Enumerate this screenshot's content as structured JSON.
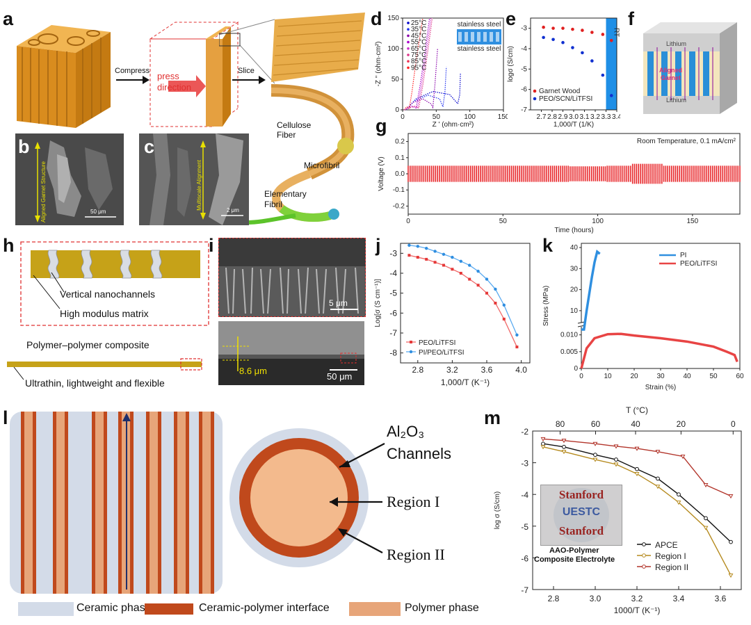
{
  "panels": {
    "a": {
      "letter": "a",
      "compress": "Compress",
      "press": "press",
      "direction": "direction",
      "slice": "Slice",
      "cellulose": "Cellulose",
      "fiber": "Fiber",
      "microfibril": "Microfibril",
      "elementary": "Elementary",
      "fibril": "Fibril"
    },
    "b": {
      "letter": "b",
      "vertical_label": "Aligned Garnet Structure",
      "scale": "50 μm"
    },
    "c": {
      "letter": "c",
      "vertical_label": "Multiscale Alignment",
      "scale": "2 μm"
    },
    "d": {
      "letter": "d",
      "ylabel": "-Z '' (ohm·cm²)",
      "xlabel": "Z ' (ohm·cm²)",
      "legend": [
        "25°C",
        "35°C",
        "45°C",
        "55°C",
        "65°C",
        "75°C",
        "85°C",
        "95°C"
      ],
      "legend_colors": [
        "#0000cc",
        "#2233ee",
        "#8800aa",
        "#aa00cc",
        "#cc33cc",
        "#dd3388",
        "#ee3355",
        "#ff2222"
      ],
      "inset_top": "stainless steel",
      "inset_bottom": "stainless steel",
      "xticks": [
        "0",
        "50",
        "100",
        "150"
      ],
      "yticks": [
        "0",
        "50",
        "100",
        "150"
      ]
    },
    "e": {
      "letter": "e",
      "ylabel": "logσ (S/cm)",
      "xlabel": "1,000/T (1/K)",
      "rt": "RT",
      "legend": [
        "Garnet Wood",
        "PEO/SCN/LiTFSI"
      ],
      "xticks": [
        "2.7",
        "2.8",
        "2.9",
        "3.0",
        "3.1",
        "3.2",
        "3.3",
        "3.4"
      ],
      "yticks": [
        "-3",
        "-4",
        "-5",
        "-6",
        "-7"
      ]
    },
    "f": {
      "letter": "f",
      "top": "Lithium",
      "middle1": "Aligned",
      "middle2": "Garnet",
      "bottom": "Lithium"
    },
    "g": {
      "letter": "g",
      "annotation": "Room Temperature, 0.1 mA/cm²",
      "ylabel": "Voltage (V)",
      "xlabel": "Time (hours)",
      "xticks": [
        "0",
        "50",
        "100",
        "150"
      ],
      "yticks": [
        "0.2",
        "0.1",
        "0.0",
        "-0.1",
        "-0.2"
      ]
    },
    "h": {
      "letter": "h",
      "nanochannels": "Vertical nanochannels",
      "matrix": "High modulus matrix",
      "composite": "Polymer–polymer composite",
      "ultrathin": "Ultrathin, lightweight and flexible"
    },
    "i": {
      "letter": "i",
      "scale1": "5 μm",
      "thickness": "8.6 μm",
      "scale2": "50 μm"
    },
    "j": {
      "letter": "j",
      "ylabel": "Log[σ (S cm⁻¹)]",
      "xlabel": "1,000/T (K⁻¹)",
      "legend": [
        "PEO/LiTFSI",
        "PI/PEO/LiTFSI"
      ],
      "xticks": [
        "2.8",
        "3.2",
        "3.6",
        "4.0"
      ],
      "yticks": [
        "-3",
        "-4",
        "-5",
        "-6",
        "-7",
        "-8"
      ]
    },
    "k": {
      "letter": "k",
      "ylabel": "Stress (MPa)",
      "xlabel": "Strain (%)",
      "legend": [
        "PI",
        "PEO/LiTFSI"
      ],
      "xticks": [
        "0",
        "10",
        "20",
        "30",
        "40",
        "50",
        "60"
      ],
      "yticks_top": [
        "40",
        "30",
        "20",
        "10"
      ],
      "yticks_bottom": [
        "0.010",
        "0.005",
        "0"
      ]
    },
    "l": {
      "letter": "l",
      "al2o3": "Al₂O₃",
      "channels": "Channels",
      "region1": "Region I",
      "region2": "Region II",
      "legend": [
        "Ceramic phase",
        "Ceramic-polymer interface",
        "Polymer phase"
      ]
    },
    "m": {
      "letter": "m",
      "top_axis": "T (°C)",
      "ylabel": "log σ (S/cm)",
      "xlabel": "1000/T (K⁻¹)",
      "top_ticks": [
        "80",
        "60",
        "40",
        "20",
        "0"
      ],
      "xticks": [
        "2.8",
        "3.0",
        "3.2",
        "3.4",
        "3.6"
      ],
      "yticks": [
        "-2",
        "-3",
        "-4",
        "-5",
        "-6",
        "-7"
      ],
      "legend": [
        "APCE",
        "Region I",
        "Region II"
      ],
      "inset_lines": [
        "Stanford",
        "UESTC",
        "Stanford"
      ],
      "caption1": "AAO-Polymer",
      "caption2": "Composite Electrolyte"
    }
  },
  "chart_data": [
    {
      "type": "line",
      "title": "",
      "xlabel": "Z ' (ohm·cm²)",
      "ylabel": "-Z '' (ohm·cm²)",
      "xlim": [
        0,
        150
      ],
      "ylim": [
        0,
        150
      ],
      "series": [
        {
          "name": "25°C",
          "x": [
            5,
            20,
            45,
            70,
            82,
            85,
            86
          ],
          "y": [
            0,
            18,
            30,
            25,
            10,
            25,
            60
          ]
        },
        {
          "name": "35°C",
          "x": [
            5,
            18,
            38,
            55,
            60,
            63,
            65
          ],
          "y": [
            0,
            15,
            24,
            18,
            5,
            30,
            70
          ]
        },
        {
          "name": "45°C",
          "x": [
            5,
            15,
            30,
            42,
            45,
            48,
            52
          ],
          "y": [
            0,
            12,
            18,
            10,
            4,
            40,
            100
          ]
        },
        {
          "name": "95°C",
          "x": [
            2,
            6,
            10,
            14,
            20,
            30
          ],
          "y": [
            0,
            5,
            3,
            30,
            80,
            150
          ]
        }
      ]
    },
    {
      "type": "scatter",
      "title": "",
      "xlabel": "1,000/T (1/K)",
      "ylabel": "logσ (S/cm)",
      "xlim": [
        2.6,
        3.4
      ],
      "ylim": [
        -7,
        -2.5
      ],
      "series": [
        {
          "name": "Garnet Wood",
          "x": [
            2.72,
            2.81,
            2.9,
            2.99,
            3.08,
            3.17,
            3.27
          ],
          "y": [
            -2.95,
            -3.0,
            -3.0,
            -3.05,
            -3.1,
            -3.2,
            -3.3
          ]
        },
        {
          "name": "PEO/SCN/LiTFSI",
          "x": [
            2.72,
            2.81,
            2.9,
            2.99,
            3.08,
            3.17,
            3.27
          ],
          "y": [
            -3.45,
            -3.55,
            -3.7,
            -3.95,
            -4.2,
            -4.6,
            -5.3
          ]
        }
      ]
    },
    {
      "type": "line",
      "title": "",
      "xlabel": "Time (hours)",
      "ylabel": "Voltage (V)",
      "xlim": [
        0,
        175
      ],
      "ylim": [
        -0.25,
        0.25
      ],
      "series": [
        {
          "name": "",
          "x": [
            0,
            175
          ],
          "y_upper": [
            0.05,
            0.05
          ],
          "y_lower": [
            -0.05,
            -0.05
          ]
        }
      ]
    },
    {
      "type": "line",
      "title": "",
      "xlabel": "1,000/T (K⁻¹)",
      "ylabel": "Log[σ (S cm⁻¹)]",
      "xlim": [
        2.6,
        4.1
      ],
      "ylim": [
        -8.5,
        -2.5
      ],
      "series": [
        {
          "name": "PEO/LiTFSI",
          "x": [
            2.7,
            2.8,
            2.9,
            3.0,
            3.1,
            3.2,
            3.3,
            3.4,
            3.5,
            3.6,
            3.7,
            3.8,
            3.95
          ],
          "y": [
            -3.1,
            -3.2,
            -3.3,
            -3.45,
            -3.6,
            -3.8,
            -4.0,
            -4.3,
            -4.6,
            -5.0,
            -5.5,
            -6.3,
            -7.7
          ]
        },
        {
          "name": "PI/PEO/LiTFSI",
          "x": [
            2.7,
            2.8,
            2.9,
            3.0,
            3.1,
            3.2,
            3.3,
            3.4,
            3.5,
            3.6,
            3.7,
            3.8,
            3.95
          ],
          "y": [
            -2.6,
            -2.65,
            -2.75,
            -2.9,
            -3.05,
            -3.2,
            -3.4,
            -3.6,
            -3.9,
            -4.3,
            -4.8,
            -5.6,
            -7.1
          ]
        }
      ]
    },
    {
      "type": "line",
      "title": "",
      "xlabel": "Strain (%)",
      "ylabel": "Stress (MPa)",
      "xlim": [
        0,
        60
      ],
      "ylim": [
        0,
        40
      ],
      "series": [
        {
          "name": "PI",
          "x": [
            0,
            1,
            2,
            3,
            4,
            5,
            6,
            7
          ],
          "y": [
            0,
            4,
            10,
            18,
            26,
            33,
            38,
            37
          ]
        },
        {
          "name": "PEO/LiTFSI",
          "x": [
            0,
            2,
            5,
            10,
            15,
            20,
            30,
            40,
            50,
            55,
            58,
            59
          ],
          "y": [
            0.0,
            0.006,
            0.009,
            0.0102,
            0.0103,
            0.0098,
            0.009,
            0.008,
            0.0065,
            0.005,
            0.004,
            0.002
          ]
        }
      ]
    },
    {
      "type": "line",
      "title": "",
      "xlabel": "1000/T (K⁻¹)",
      "ylabel": "log σ (S/cm)",
      "xlim": [
        2.7,
        3.7
      ],
      "ylim": [
        -7,
        -2
      ],
      "series": [
        {
          "name": "APCE",
          "x": [
            2.75,
            2.85,
            3.0,
            3.1,
            3.2,
            3.3,
            3.4,
            3.53,
            3.65
          ],
          "y": [
            -2.4,
            -2.5,
            -2.75,
            -2.9,
            -3.2,
            -3.5,
            -4.0,
            -4.75,
            -5.5
          ]
        },
        {
          "name": "Region I",
          "x": [
            2.75,
            2.85,
            3.0,
            3.1,
            3.2,
            3.3,
            3.4,
            3.53,
            3.65
          ],
          "y": [
            -2.5,
            -2.65,
            -2.9,
            -3.05,
            -3.35,
            -3.75,
            -4.25,
            -5.05,
            -6.55
          ]
        },
        {
          "name": "Region II",
          "x": [
            2.75,
            2.85,
            3.0,
            3.1,
            3.2,
            3.3,
            3.42,
            3.53,
            3.65
          ],
          "y": [
            -2.25,
            -2.3,
            -2.4,
            -2.48,
            -2.55,
            -2.65,
            -2.8,
            -3.7,
            -4.05
          ]
        }
      ]
    }
  ]
}
